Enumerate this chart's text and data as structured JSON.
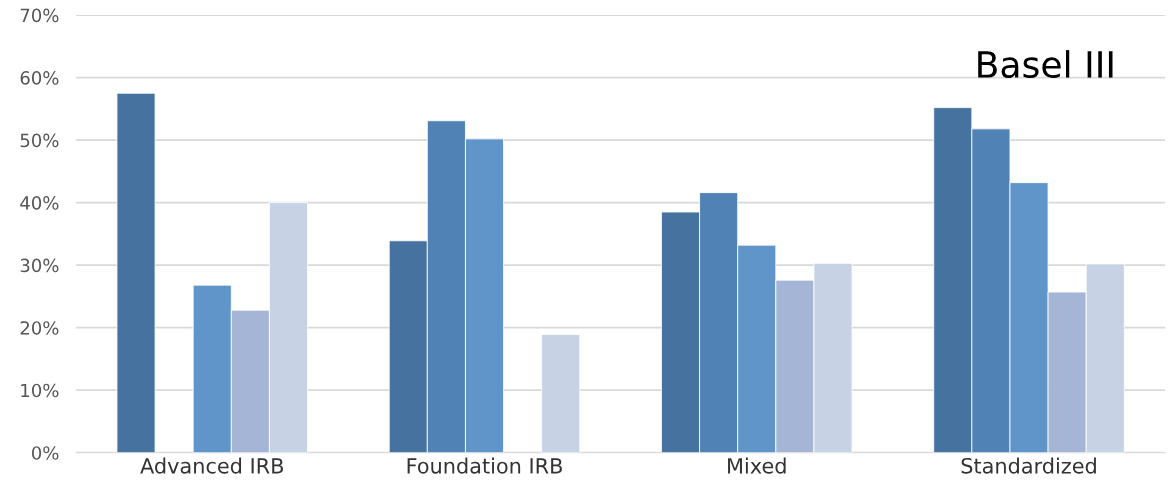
{
  "chart_data": {
    "type": "bar",
    "categories": [
      "Advanced IRB",
      "Foundation IRB",
      "Mixed",
      "Standardized"
    ],
    "series": [
      {
        "color": "#46729f",
        "values": [
          57.5,
          33.9,
          38.5,
          55.2
        ]
      },
      {
        "color": "#5182b5",
        "values": [
          null,
          53.1,
          41.6,
          51.8
        ]
      },
      {
        "color": "#6095c9",
        "values": [
          26.8,
          50.2,
          33.2,
          43.2
        ]
      },
      {
        "color": "#a4b5d6",
        "values": [
          22.8,
          null,
          27.6,
          25.7
        ]
      },
      {
        "color": "#c7d2e5",
        "values": [
          40.0,
          18.9,
          30.3,
          30.2
        ]
      }
    ],
    "ylim": [
      0,
      70
    ],
    "yticks": [
      {
        "value": 0,
        "label": "0%"
      },
      {
        "value": 10,
        "label": "10%"
      },
      {
        "value": 20,
        "label": "20%"
      },
      {
        "value": 30,
        "label": "30%"
      },
      {
        "value": 40,
        "label": "40%"
      },
      {
        "value": 50,
        "label": "50%"
      },
      {
        "value": 60,
        "label": "60%"
      },
      {
        "value": 70,
        "label": "70%"
      }
    ],
    "grid": "y",
    "annotations": [
      "Basel III"
    ]
  }
}
